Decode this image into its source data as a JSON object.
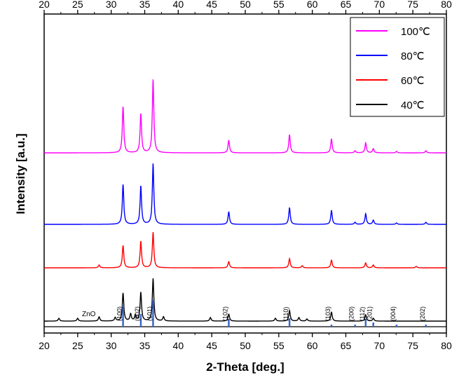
{
  "chart_data": {
    "type": "line",
    "title": "",
    "xlabel": "2-Theta [deg.]",
    "ylabel": "Intensity [a.u.]",
    "xlim": [
      20,
      80
    ],
    "ylim": [
      0,
      455
    ],
    "xticks": [
      20,
      25,
      30,
      35,
      40,
      45,
      50,
      55,
      60,
      65,
      70,
      75,
      80
    ],
    "xtick_labels": [
      "20",
      "25",
      "30",
      "35",
      "40",
      "45",
      "50",
      "55",
      "60",
      "65",
      "70",
      "75",
      "80"
    ],
    "grid": false,
    "legend_position": "top-right",
    "series": [
      {
        "name": "100℃",
        "color": "#ff00ff",
        "baseline": 257,
        "peaks": [
          [
            31.77,
            66
          ],
          [
            34.42,
            56
          ],
          [
            36.25,
            105
          ],
          [
            47.54,
            18
          ],
          [
            56.6,
            26
          ],
          [
            62.86,
            20
          ],
          [
            66.38,
            3
          ],
          [
            67.96,
            14
          ],
          [
            69.1,
            6
          ],
          [
            72.56,
            2
          ],
          [
            76.95,
            3
          ]
        ]
      },
      {
        "name": "80℃",
        "color": "#0000ff",
        "baseline": 155,
        "peaks": [
          [
            31.77,
            57
          ],
          [
            34.42,
            55
          ],
          [
            36.25,
            87
          ],
          [
            47.54,
            18
          ],
          [
            56.6,
            24
          ],
          [
            62.86,
            20
          ],
          [
            66.38,
            3
          ],
          [
            67.96,
            15
          ],
          [
            69.1,
            6
          ],
          [
            72.56,
            2
          ],
          [
            76.95,
            3
          ]
        ]
      },
      {
        "name": "60℃",
        "color": "#ff0000",
        "baseline": 93,
        "peaks": [
          [
            28.2,
            4
          ],
          [
            31.77,
            32
          ],
          [
            34.42,
            38
          ],
          [
            36.25,
            51
          ],
          [
            47.54,
            9
          ],
          [
            56.6,
            13
          ],
          [
            58.5,
            3
          ],
          [
            62.86,
            11
          ],
          [
            67.96,
            7
          ],
          [
            69.1,
            4
          ],
          [
            75.5,
            2
          ]
        ]
      },
      {
        "name": "40℃",
        "color": "#000000",
        "baseline": 17,
        "peaks": [
          [
            22.2,
            4
          ],
          [
            25.0,
            4
          ],
          [
            28.2,
            6
          ],
          [
            30.6,
            5
          ],
          [
            31.77,
            40
          ],
          [
            32.9,
            10
          ],
          [
            33.6,
            8
          ],
          [
            34.42,
            41
          ],
          [
            36.25,
            61
          ],
          [
            37.8,
            6
          ],
          [
            44.8,
            5
          ],
          [
            47.54,
            10
          ],
          [
            54.5,
            4
          ],
          [
            56.6,
            15
          ],
          [
            58.0,
            5
          ],
          [
            59.2,
            3
          ],
          [
            62.86,
            13
          ],
          [
            67.96,
            9
          ],
          [
            69.1,
            4
          ]
        ]
      }
    ],
    "reference": {
      "name": "ZnO",
      "color": "#3a66cc",
      "sticks": [
        {
          "x": 31.77,
          "value": 100,
          "hkl": "(100)"
        },
        {
          "x": 34.42,
          "value": 60,
          "hkl": "(002)"
        },
        {
          "x": 36.25,
          "value": 127,
          "hkl": "(101)"
        },
        {
          "x": 47.54,
          "value": 37,
          "hkl": "(102)"
        },
        {
          "x": 56.6,
          "value": 40,
          "hkl": "(110)"
        },
        {
          "x": 62.86,
          "value": 10,
          "hkl": "(103)"
        },
        {
          "x": 66.38,
          "value": 10,
          "hkl": "(200)"
        },
        {
          "x": 67.96,
          "value": 37,
          "hkl": "(112)"
        },
        {
          "x": 69.1,
          "value": 20,
          "hkl": "(201)"
        },
        {
          "x": 72.56,
          "value": 10,
          "hkl": "(004)"
        },
        {
          "x": 76.95,
          "value": 10,
          "hkl": "(202)"
        }
      ]
    }
  }
}
